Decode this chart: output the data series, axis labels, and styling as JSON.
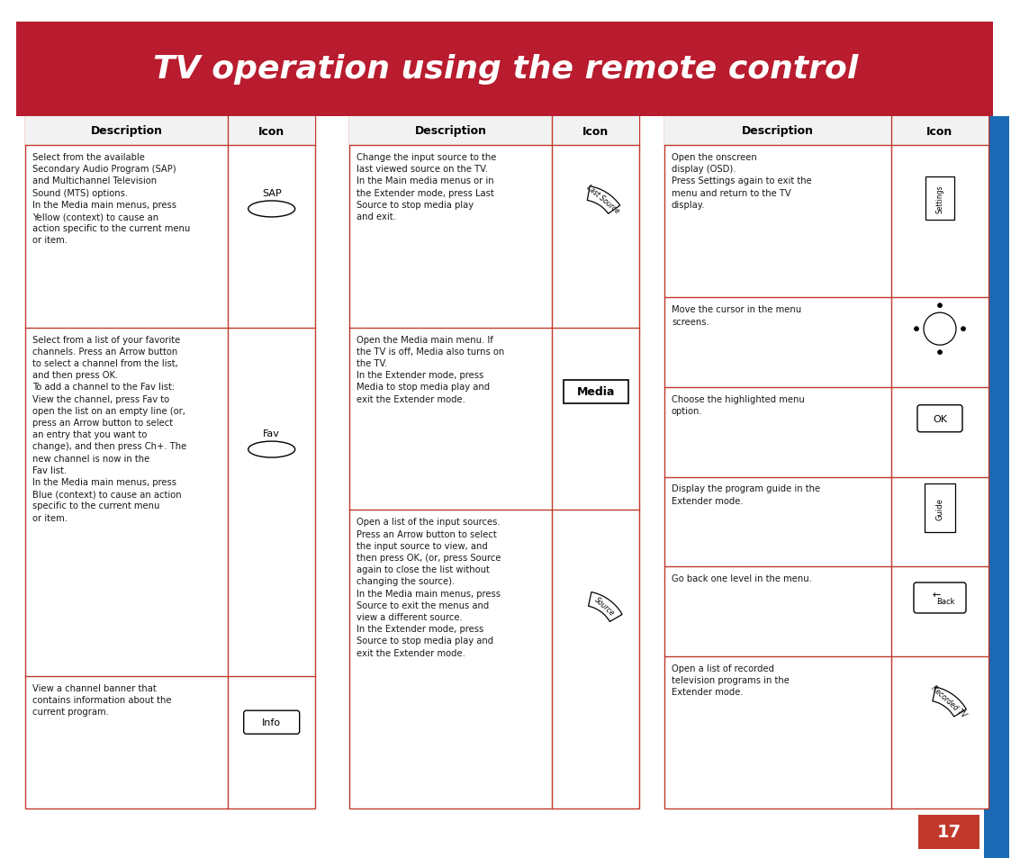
{
  "title": "TV operation using the remote control",
  "title_bg": "#b81c2e",
  "title_color": "#ffffff",
  "page_bg": "#ffffff",
  "table_border_color": "#c0392b",
  "sidebar_color": "#1a6ab5",
  "page_number": "17",
  "page_number_bg": "#c0392b",
  "col1_rows": [
    {
      "desc": "Select from the available\nSecondary Audio Program (SAP)\nand Multichannel Television\nSound (MTS) options.\nIn the Media main menus, press\nYellow (context) to cause an\naction specific to the current menu\nor item.",
      "icon_type": "sap_button",
      "icon_label": "SAP",
      "weight": 2.2
    },
    {
      "desc": "Select from a list of your favorite\nchannels. Press an Arrow button\nto select a channel from the list,\nand then press OK.\nTo add a channel to the Fav list:\nView the channel, press Fav to\nopen the list on an empty line (or,\npress an Arrow button to select\nan entry that you want to\nchange), and then press Ch+. The\nnew channel is now in the\nFav list.\nIn the Media main menus, press\nBlue (context) to cause an action\nspecific to the current menu\nor item.",
      "icon_type": "fav_button",
      "icon_label": "Fav",
      "weight": 4.2
    },
    {
      "desc": "View a channel banner that\ncontains information about the\ncurrent program.",
      "icon_type": "info_button",
      "icon_label": "Info",
      "weight": 1.6
    }
  ],
  "col2_rows": [
    {
      "desc": "Change the input source to the\nlast viewed source on the TV.\nIn the Main media menus or in\nthe Extender mode, press Last\nSource to stop media play\nand exit.",
      "icon_type": "last_source",
      "icon_label": "Last Source",
      "weight": 2.2
    },
    {
      "desc": "Open the Media main menu. If\nthe TV is off, Media also turns on\nthe TV.\nIn the Extender mode, press\nMedia to stop media play and\nexit the Extender mode.",
      "icon_type": "media_button",
      "icon_label": "Media",
      "weight": 2.2
    },
    {
      "desc": "Open a list of the input sources.\nPress an Arrow button to select\nthe input source to view, and\nthen press OK, (or, press Source\nagain to close the list without\nchanging the source).\nIn the Media main menus, press\nSource to exit the menus and\nview a different source.\nIn the Extender mode, press\nSource to stop media play and\nexit the Extender mode.",
      "icon_type": "source_button",
      "icon_label": "Source",
      "weight": 3.6
    }
  ],
  "col3_rows": [
    {
      "desc": "Open the onscreen\ndisplay (OSD).\nPress Settings again to exit the\nmenu and return to the TV\ndisplay.",
      "icon_type": "settings_button",
      "icon_label": "Settings",
      "weight": 1.7
    },
    {
      "desc": "Move the cursor in the menu\nscreens.",
      "icon_type": "nav_button",
      "icon_label": "",
      "weight": 1.0
    },
    {
      "desc": "Choose the highlighted menu\noption.",
      "icon_type": "ok_button",
      "icon_label": "OK",
      "weight": 1.0
    },
    {
      "desc": "Display the program guide in the\nExtender mode.",
      "icon_type": "guide_button",
      "icon_label": "Guide",
      "weight": 1.0
    },
    {
      "desc": "Go back one level in the menu.",
      "icon_type": "back_button",
      "icon_label": "Back",
      "weight": 1.0
    },
    {
      "desc": "Open a list of recorded\ntelevision programs in the\nExtender mode.",
      "icon_type": "recorded_tv",
      "icon_label": "Recorded TV",
      "weight": 1.7
    }
  ]
}
